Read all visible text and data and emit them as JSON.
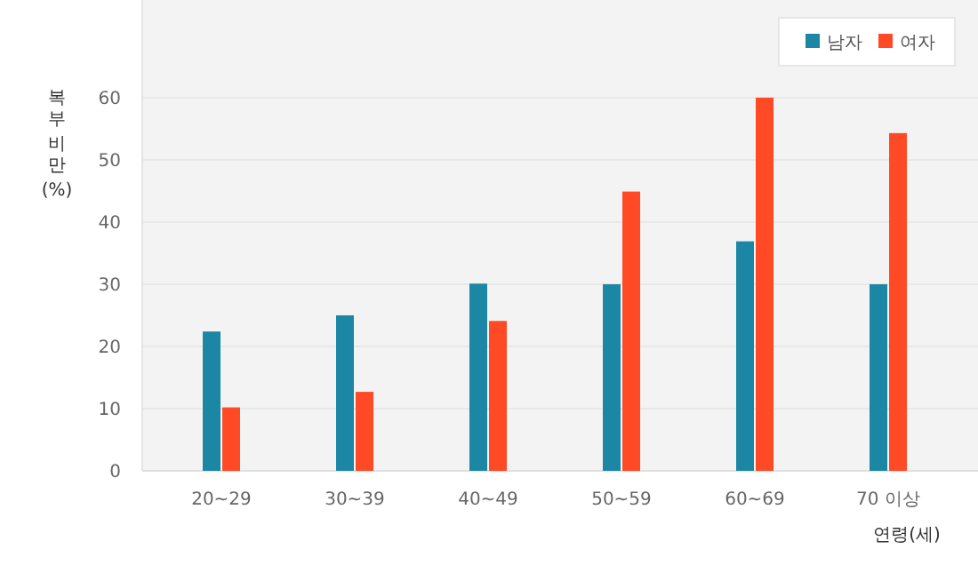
{
  "chart_data": {
    "type": "bar",
    "ylabel": "복부 비만 (%)",
    "xlabel": "연령(세)",
    "categories": [
      "20~29",
      "30~39",
      "40~49",
      "50~59",
      "60~69",
      "70 이상"
    ],
    "series": [
      {
        "name": "남자",
        "color": "#1b87a4",
        "values": [
          22.4,
          25,
          30.1,
          30,
          36.9,
          30
        ]
      },
      {
        "name": "여자",
        "color": "#ff4a25",
        "values": [
          10.2,
          12.7,
          24.1,
          44.9,
          60,
          54.3
        ]
      }
    ],
    "ylim": [
      0,
      75.7
    ],
    "yticks": [
      0,
      10,
      20,
      30,
      40,
      50,
      60
    ],
    "grid": "y",
    "legend": "top right"
  }
}
